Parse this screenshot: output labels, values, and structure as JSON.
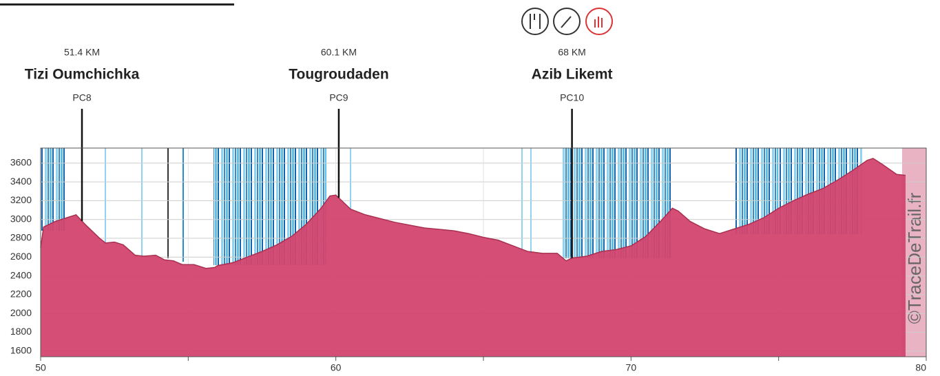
{
  "chart_data": {
    "type": "area",
    "x": [
      50.0,
      50.1,
      50.5,
      51.0,
      51.2,
      51.5,
      51.6,
      52.0,
      52.2,
      52.5,
      52.8,
      53.2,
      53.5,
      53.9,
      54.2,
      54.5,
      54.8,
      55.2,
      55.6,
      55.9,
      56.0,
      56.5,
      57.0,
      57.5,
      58.0,
      58.5,
      59.0,
      59.5,
      59.8,
      60.0,
      60.2,
      60.5,
      61.0,
      62.0,
      63.0,
      64.0,
      64.5,
      65.0,
      65.5,
      66.0,
      66.5,
      67.0,
      67.5,
      67.8,
      68.0,
      68.5,
      69.0,
      69.5,
      70.0,
      70.5,
      71.0,
      71.4,
      71.6,
      72.0,
      72.5,
      73.0,
      73.5,
      74.0,
      74.5,
      75.0,
      75.5,
      76.0,
      76.5,
      77.0,
      77.5,
      78.0,
      78.2,
      78.5,
      79.0,
      79.3
    ],
    "values": [
      2700,
      2920,
      2980,
      3030,
      3050,
      2950,
      2920,
      2800,
      2750,
      2760,
      2730,
      2620,
      2610,
      2620,
      2570,
      2560,
      2520,
      2520,
      2480,
      2490,
      2510,
      2540,
      2600,
      2660,
      2730,
      2820,
      2950,
      3120,
      3250,
      3260,
      3200,
      3110,
      3050,
      2970,
      2910,
      2880,
      2850,
      2810,
      2780,
      2720,
      2660,
      2640,
      2640,
      2560,
      2590,
      2610,
      2660,
      2680,
      2720,
      2820,
      2980,
      3120,
      3090,
      2980,
      2900,
      2850,
      2900,
      2950,
      3020,
      3120,
      3200,
      3270,
      3330,
      3420,
      3520,
      3630,
      3650,
      3590,
      3480,
      3470
    ],
    "color": "#d2456e",
    "xlim": [
      50,
      80
    ],
    "xticks": [
      50,
      60,
      70,
      80
    ],
    "xminor_ticks": [
      55,
      65,
      75
    ],
    "ylim": [
      1540,
      3760
    ],
    "yticks": [
      1600,
      1800,
      2000,
      2200,
      2400,
      2600,
      2800,
      3000,
      3200,
      3400,
      3600
    ],
    "grid": true,
    "markers": [
      {
        "x": 51.4,
        "label": "51.4 KM",
        "name": "Tizi Oumchichka",
        "code": "PC8"
      },
      {
        "x": 60.1,
        "label": "60.1 KM",
        "name": "Tougroudaden",
        "code": "PC9"
      },
      {
        "x": 68,
        "label": "68 KM",
        "name": "Azib Likemt",
        "code": "PC10"
      }
    ],
    "watermark": "©TraceDeTrail.fr"
  }
}
